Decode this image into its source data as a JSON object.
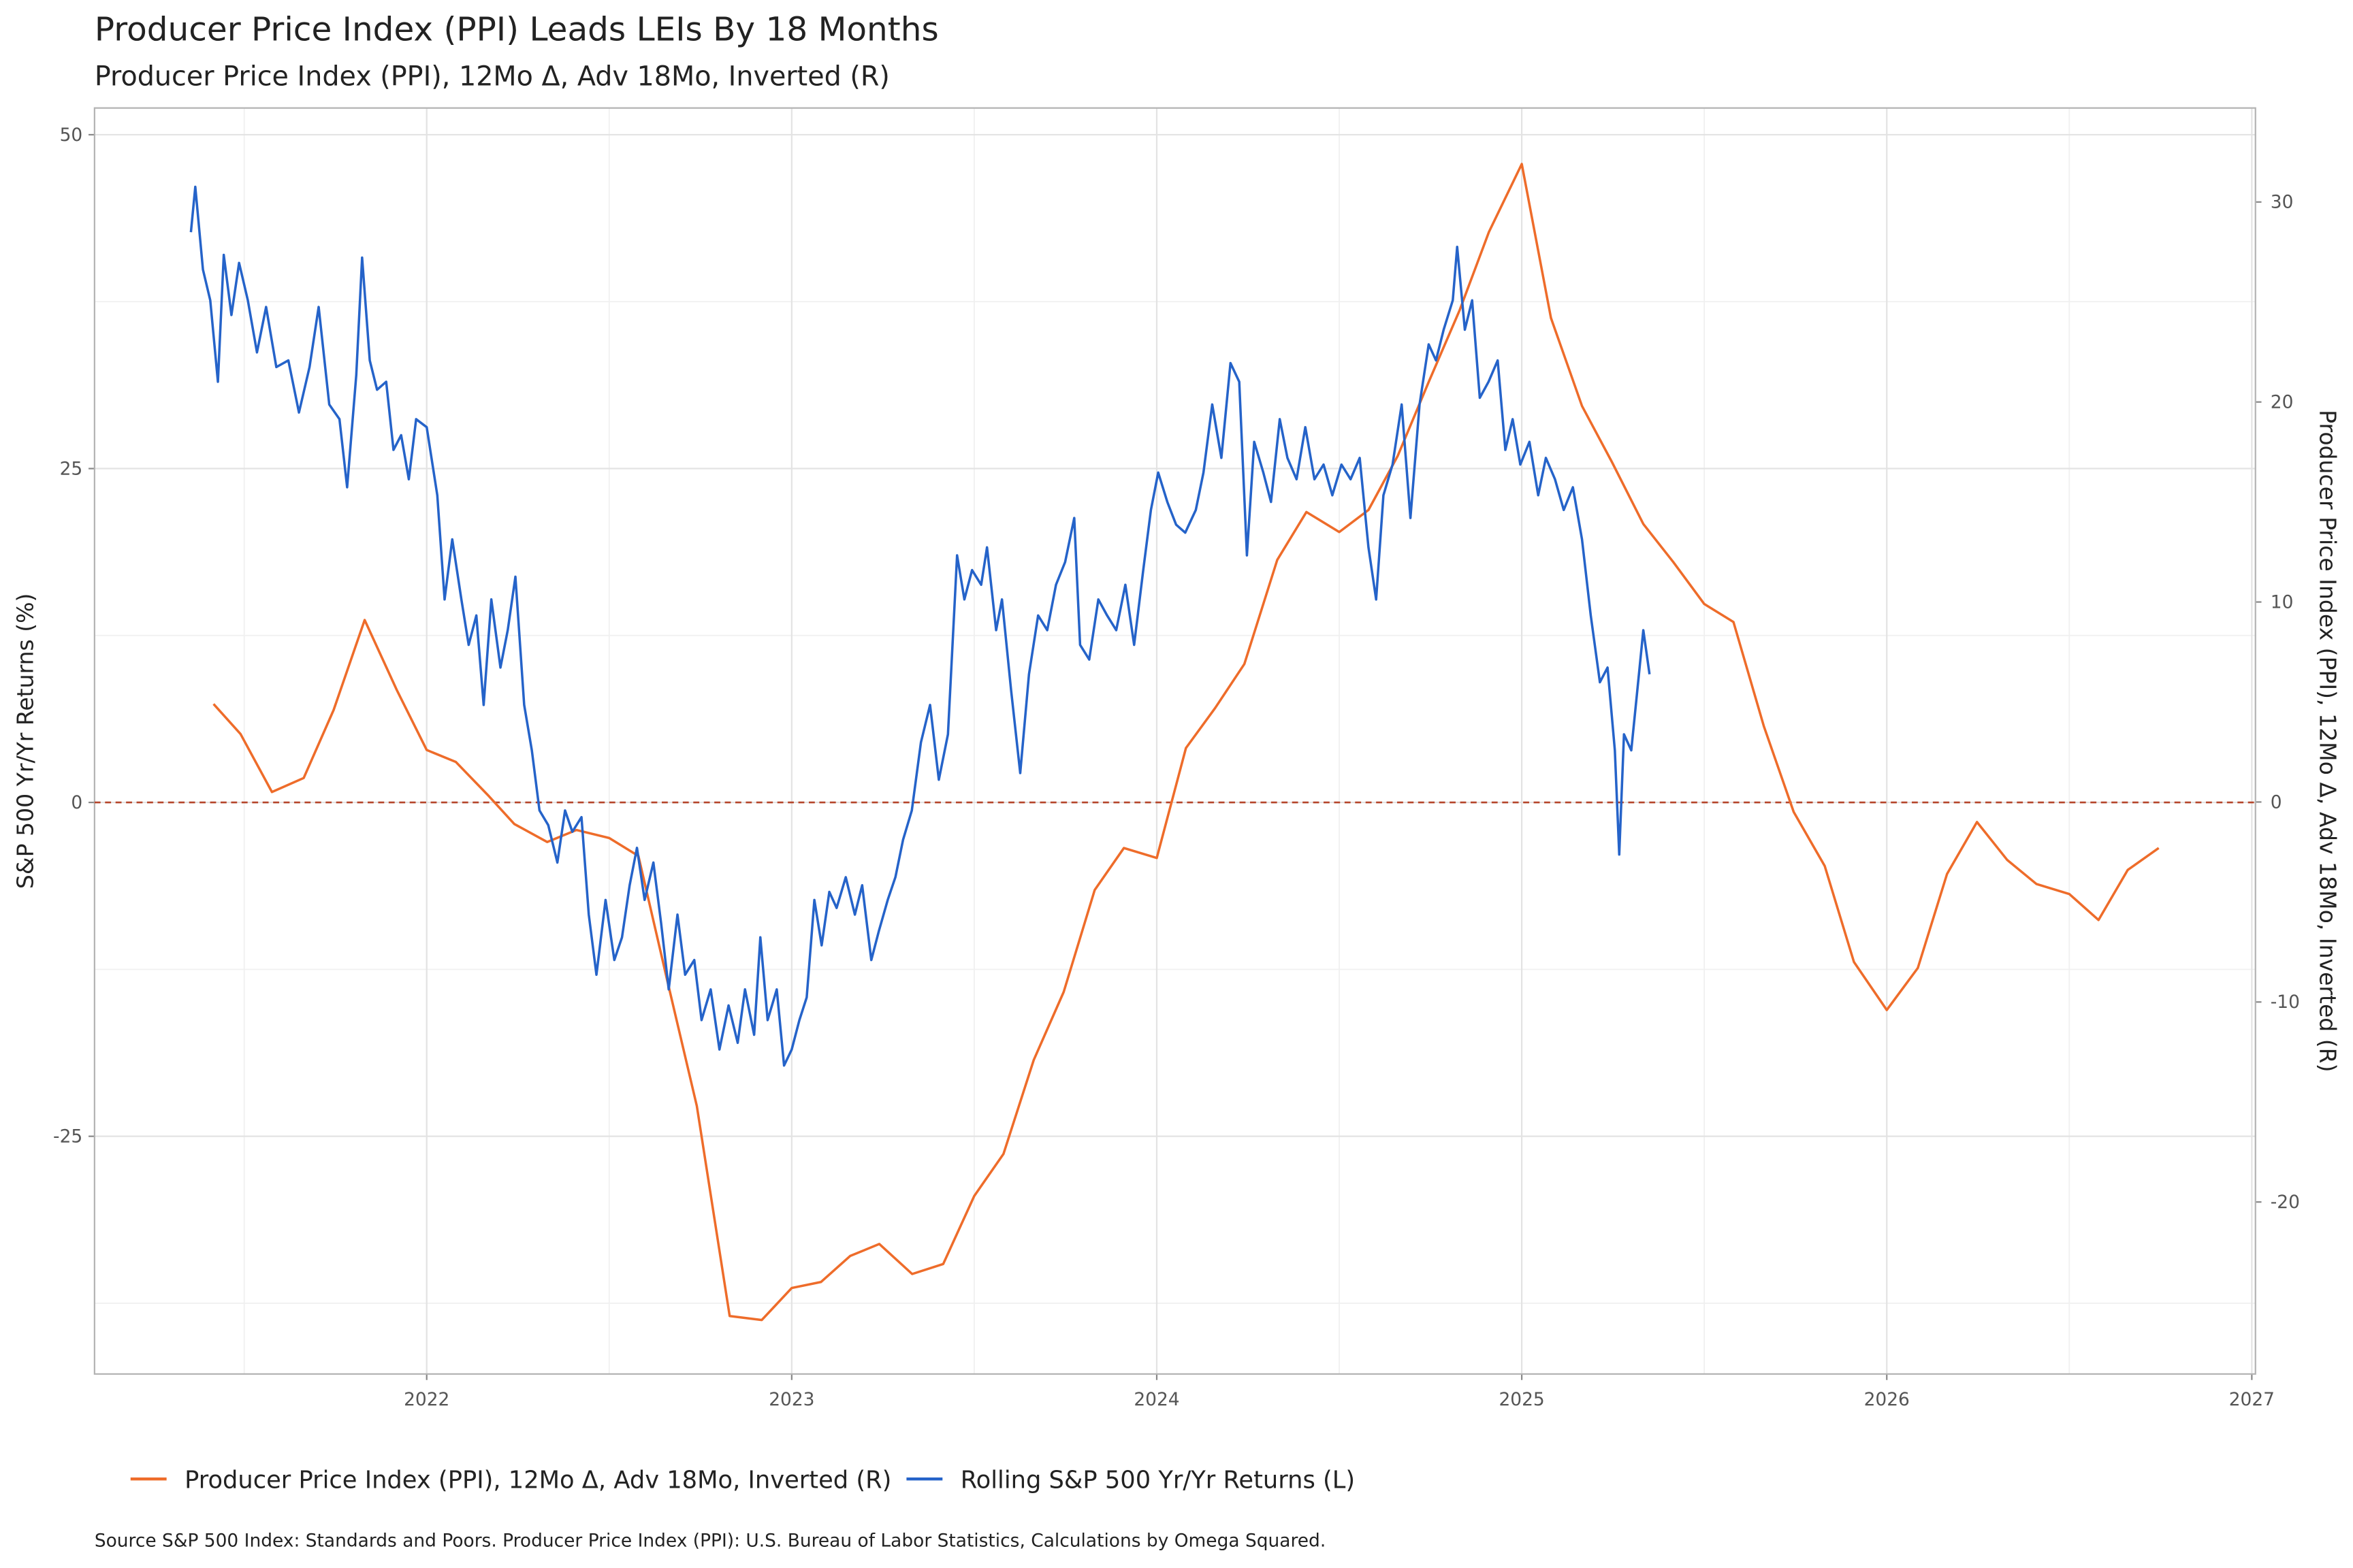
{
  "chart_data": {
    "type": "line",
    "title": "Producer Price Index (PPI)  Leads LEIs By  18  Months",
    "subtitle": "Producer Price Index (PPI), 12Mo Δ, Adv 18Mo, Inverted (R)",
    "ylabel": "S&P 500 Yr/Yr Returns (%)",
    "y2label": "Producer Price Index (PPI), 12Mo Δ, Adv 18Mo, Inverted (R)",
    "caption": "Source S&P 500 Index: Standards and Poors. Producer Price Index (PPI): U.S. Bureau of Labor Statistics, Calculations by Omega Squared.",
    "xlim": [
      2021.09,
      2027.01
    ],
    "xticks": [
      2022,
      2023,
      2024,
      2025,
      2026,
      2027
    ],
    "ylim": [
      -42.8,
      52
    ],
    "yticks": [
      -25,
      0,
      25,
      50
    ],
    "y2lim": [
      -28.6,
      34.7
    ],
    "y2ticks": [
      -20,
      -10,
      0,
      10,
      20,
      30
    ],
    "grid": true,
    "hline": 0,
    "hline_color": "#b5452a",
    "legend": "bottom",
    "series": [
      {
        "name": "Producer Price Index (PPI), 12Mo Δ, Adv 18Mo, Inverted (R)",
        "color": "#ee6c2a",
        "axis": "y2",
        "x": [
          2021.416,
          2021.49,
          2021.576,
          2021.663,
          2021.745,
          2021.83,
          2021.918,
          2022.0,
          2022.08,
          2022.17,
          2022.24,
          2022.33,
          2022.41,
          2022.5,
          2022.58,
          2022.66,
          2022.74,
          2022.83,
          2022.918,
          2023.0,
          2023.08,
          2023.16,
          2023.24,
          2023.33,
          2023.415,
          2023.5,
          2023.58,
          2023.663,
          2023.745,
          2023.83,
          2023.91,
          2024.0,
          2024.08,
          2024.16,
          2024.24,
          2024.33,
          2024.41,
          2024.5,
          2024.58,
          2024.66,
          2024.745,
          2024.83,
          2024.91,
          2025.0,
          2025.08,
          2025.165,
          2025.247,
          2025.333,
          2025.415,
          2025.5,
          2025.58,
          2025.663,
          2025.745,
          2025.83,
          2025.91,
          2026.0,
          2026.085,
          2026.165,
          2026.247,
          2026.33,
          2026.41,
          2026.5,
          2026.58,
          2026.66,
          2026.745
        ],
        "values": [
          4.9,
          3.4,
          0.5,
          1.2,
          4.6,
          9.1,
          5.6,
          2.6,
          2.0,
          0.3,
          -1.1,
          -2.0,
          -1.4,
          -1.8,
          -2.7,
          -9.0,
          -15.2,
          -25.7,
          -25.9,
          -24.3,
          -24.0,
          -22.7,
          -22.1,
          -23.6,
          -23.1,
          -19.7,
          -17.6,
          -12.9,
          -9.5,
          -4.4,
          -2.3,
          -2.8,
          2.7,
          4.7,
          6.9,
          12.1,
          14.5,
          13.5,
          14.6,
          17.3,
          21.0,
          24.6,
          28.5,
          31.9,
          24.2,
          19.8,
          17.0,
          13.9,
          12.0,
          9.9,
          9.0,
          3.8,
          -0.5,
          -3.2,
          -8.0,
          -10.4,
          -8.3,
          -3.6,
          -1.0,
          -2.9,
          -4.1,
          -4.6,
          -5.9,
          -3.4,
          -2.3
        ]
      },
      {
        "name": "Rolling S&P 500 Yr/Yr Returns (L)",
        "color": "#2563c9",
        "x": [
          2021.354,
          2021.366,
          2021.387,
          2021.407,
          2021.428,
          2021.444,
          2021.465,
          2021.486,
          2021.51,
          2021.535,
          2021.56,
          2021.588,
          2021.621,
          2021.65,
          2021.679,
          2021.704,
          2021.733,
          2021.761,
          2021.782,
          2021.807,
          2021.823,
          2021.844,
          2021.864,
          2021.889,
          2021.909,
          2021.93,
          2021.951,
          2021.971,
          2022.0,
          2022.029,
          2022.049,
          2022.07,
          2022.095,
          2022.115,
          2022.136,
          2022.156,
          2022.177,
          2022.202,
          2022.222,
          2022.243,
          2022.267,
          2022.288,
          2022.309,
          2022.333,
          2022.358,
          2022.379,
          2022.399,
          2022.424,
          2022.444,
          2022.465,
          2022.49,
          2022.514,
          2022.535,
          2022.556,
          2022.576,
          2022.597,
          2022.621,
          2022.642,
          2022.663,
          2022.687,
          2022.708,
          2022.733,
          2022.753,
          2022.778,
          2022.802,
          2022.827,
          2022.852,
          2022.872,
          2022.897,
          2022.914,
          2022.934,
          2022.959,
          2022.979,
          2023.0,
          2023.021,
          2023.041,
          2023.062,
          2023.082,
          2023.103,
          2023.123,
          2023.148,
          2023.173,
          2023.193,
          2023.218,
          2023.239,
          2023.263,
          2023.284,
          2023.305,
          2023.329,
          2023.354,
          2023.379,
          2023.403,
          2023.428,
          2023.453,
          2023.473,
          2023.494,
          2023.519,
          2023.535,
          2023.56,
          2023.576,
          2023.601,
          2023.626,
          2023.65,
          2023.675,
          2023.7,
          2023.724,
          2023.749,
          2023.774,
          2023.79,
          2023.815,
          2023.84,
          2023.864,
          2023.889,
          2023.914,
          2023.938,
          2023.963,
          2023.984,
          2024.004,
          2024.029,
          2024.053,
          2024.078,
          2024.107,
          2024.128,
          2024.152,
          2024.177,
          2024.202,
          2024.226,
          2024.247,
          2024.267,
          2024.292,
          2024.313,
          2024.337,
          2024.358,
          2024.383,
          2024.407,
          2024.432,
          2024.457,
          2024.481,
          2024.506,
          2024.531,
          2024.556,
          2024.58,
          2024.601,
          2024.621,
          2024.646,
          2024.671,
          2024.695,
          2024.72,
          2024.745,
          2024.765,
          2024.786,
          2024.811,
          2024.823,
          2024.844,
          2024.864,
          2024.885,
          2024.909,
          2024.934,
          2024.955,
          2024.975,
          2024.996,
          2025.021,
          2025.045,
          2025.066,
          2025.091,
          2025.115,
          2025.14,
          2025.165,
          2025.189,
          2025.214,
          2025.235,
          2025.255,
          2025.267,
          2025.28,
          2025.3,
          2025.321,
          2025.333,
          2025.35
        ],
        "values": [
          42.7,
          46.1,
          39.9,
          37.6,
          31.5,
          41,
          36.5,
          40.4,
          37.6,
          33.7,
          37.1,
          32.6,
          33.1,
          29.2,
          32.6,
          37.1,
          29.8,
          28.7,
          23.6,
          32,
          40.8,
          33.1,
          30.9,
          31.5,
          26.4,
          27.5,
          24.2,
          28.7,
          28.1,
          23,
          15.2,
          19.7,
          15.2,
          11.8,
          14,
          7.3,
          15.2,
          10.1,
          12.9,
          16.9,
          7.3,
          3.9,
          -0.6,
          -1.7,
          -4.5,
          -0.6,
          -2.2,
          -1.1,
          -8.4,
          -12.9,
          -7.3,
          -11.8,
          -10.1,
          -6.2,
          -3.4,
          -7.3,
          -4.5,
          -9,
          -14,
          -8.4,
          -12.9,
          -11.8,
          -16.3,
          -14,
          -18.5,
          -15.2,
          -18,
          -14,
          -17.4,
          -10.1,
          -16.3,
          -14,
          -19.7,
          -18.5,
          -16.3,
          -14.6,
          -7.3,
          -10.7,
          -6.7,
          -7.9,
          -5.6,
          -8.4,
          -6.2,
          -11.8,
          -9.6,
          -7.3,
          -5.6,
          -2.8,
          -0.6,
          4.5,
          7.3,
          1.7,
          5.1,
          18.5,
          15.2,
          17.4,
          16.3,
          19.1,
          12.9,
          15.2,
          8.4,
          2.2,
          9.6,
          14,
          12.9,
          16.3,
          18,
          21.3,
          11.8,
          10.7,
          15.2,
          14,
          12.9,
          16.3,
          11.8,
          17.4,
          21.9,
          24.7,
          22.5,
          20.8,
          20.2,
          21.9,
          24.7,
          29.8,
          25.8,
          32.9,
          31.5,
          18.5,
          27,
          24.7,
          22.5,
          28.7,
          25.8,
          24.2,
          28.1,
          24.2,
          25.3,
          23,
          25.3,
          24.2,
          25.8,
          19.1,
          15.2,
          23,
          25.3,
          29.8,
          21.3,
          29.8,
          34.3,
          33.1,
          35.4,
          37.6,
          41.6,
          35.4,
          37.6,
          30.3,
          31.5,
          33.1,
          26.4,
          28.7,
          25.3,
          27,
          23,
          25.8,
          24.2,
          21.9,
          23.6,
          19.7,
          14,
          9,
          10.1,
          3.9,
          -3.9,
          5.1,
          3.9,
          9.6,
          12.9,
          9.6
        ]
      }
    ]
  }
}
